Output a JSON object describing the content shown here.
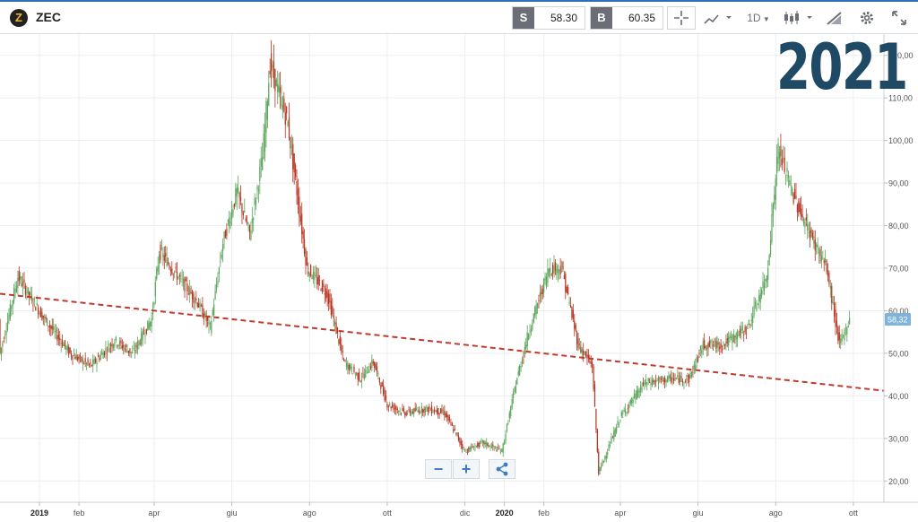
{
  "header": {
    "symbol": "ZEC",
    "logo_glyph": "Z",
    "sell_tag": "S",
    "sell_price": "58.30",
    "buy_tag": "B",
    "buy_price": "60.35",
    "timeframe": "1D",
    "icons": [
      "crosshair-icon",
      "line-chart-icon",
      "candlestick-icon",
      "drawing-tools-icon",
      "gear-icon",
      "fullscreen-icon"
    ]
  },
  "overlay_title": "2021",
  "controls": {
    "zoom_out": "−",
    "zoom_in": "+"
  },
  "colors": {
    "up": "#5aa55a",
    "down": "#b5331f",
    "trend": "#c0392b",
    "price_tag": "#7fb3dd",
    "title": "#1f4a66"
  },
  "chart_data": {
    "type": "candlestick",
    "symbol": "ZEC",
    "last_price_label": "58,32",
    "y_axis": {
      "min": 15,
      "max": 125,
      "ticks": [
        20,
        30,
        40,
        50,
        60,
        70,
        80,
        90,
        100,
        110,
        120
      ],
      "tick_labels": [
        "20,00",
        "30,00",
        "40,00",
        "50,00",
        "60,00",
        "70,00",
        "80,00",
        "90,00",
        "100,00",
        "110,00",
        "120,00"
      ]
    },
    "x_axis": {
      "start": "2018-12-01",
      "end": "2020-10-25",
      "tick_dates": [
        "2019-01-01",
        "2019-02-01",
        "2019-04-01",
        "2019-06-01",
        "2019-08-01",
        "2019-10-01",
        "2019-12-01",
        "2020-01-01",
        "2020-02-01",
        "2020-04-01",
        "2020-06-01",
        "2020-08-01",
        "2020-10-01"
      ],
      "tick_labels": [
        "2019",
        "feb",
        "apr",
        "giu",
        "ago",
        "ott",
        "dic",
        "2020",
        "feb",
        "apr",
        "giu",
        "ago",
        "ott"
      ]
    },
    "price_path": [
      [
        "2018-12-01",
        50
      ],
      [
        "2018-12-15",
        68
      ],
      [
        "2019-01-05",
        58
      ],
      [
        "2019-01-25",
        50
      ],
      [
        "2019-02-10",
        47
      ],
      [
        "2019-03-01",
        53
      ],
      [
        "2019-03-15",
        50
      ],
      [
        "2019-03-30",
        58
      ],
      [
        "2019-04-05",
        74
      ],
      [
        "2019-04-20",
        68
      ],
      [
        "2019-05-05",
        62
      ],
      [
        "2019-05-15",
        56
      ],
      [
        "2019-05-25",
        76
      ],
      [
        "2019-06-05",
        88
      ],
      [
        "2019-06-15",
        78
      ],
      [
        "2019-06-25",
        96
      ],
      [
        "2019-07-01",
        118
      ],
      [
        "2019-07-15",
        104
      ],
      [
        "2019-07-30",
        70
      ],
      [
        "2019-08-15",
        64
      ],
      [
        "2019-08-28",
        48
      ],
      [
        "2019-09-10",
        44
      ],
      [
        "2019-09-20",
        48
      ],
      [
        "2019-10-01",
        38
      ],
      [
        "2019-10-15",
        36
      ],
      [
        "2019-11-01",
        37
      ],
      [
        "2019-11-15",
        36
      ],
      [
        "2019-12-01",
        27
      ],
      [
        "2019-12-15",
        29
      ],
      [
        "2019-12-30",
        27
      ],
      [
        "2020-01-10",
        43
      ],
      [
        "2020-01-20",
        55
      ],
      [
        "2020-02-05",
        70
      ],
      [
        "2020-02-15",
        70
      ],
      [
        "2020-02-28",
        52
      ],
      [
        "2020-03-10",
        47
      ],
      [
        "2020-03-15",
        22
      ],
      [
        "2020-04-01",
        35
      ],
      [
        "2020-04-20",
        43
      ],
      [
        "2020-05-10",
        44
      ],
      [
        "2020-05-25",
        44
      ],
      [
        "2020-06-05",
        52
      ],
      [
        "2020-06-20",
        52
      ],
      [
        "2020-07-10",
        56
      ],
      [
        "2020-07-25",
        68
      ],
      [
        "2020-08-03",
        98
      ],
      [
        "2020-08-15",
        87
      ],
      [
        "2020-08-25",
        80
      ],
      [
        "2020-09-10",
        70
      ],
      [
        "2020-09-20",
        52
      ],
      [
        "2020-09-28",
        58
      ]
    ],
    "trendline": {
      "start": [
        "2018-12-01",
        64
      ],
      "end": [
        "2020-10-25",
        41.2
      ],
      "style": "dashed"
    }
  }
}
